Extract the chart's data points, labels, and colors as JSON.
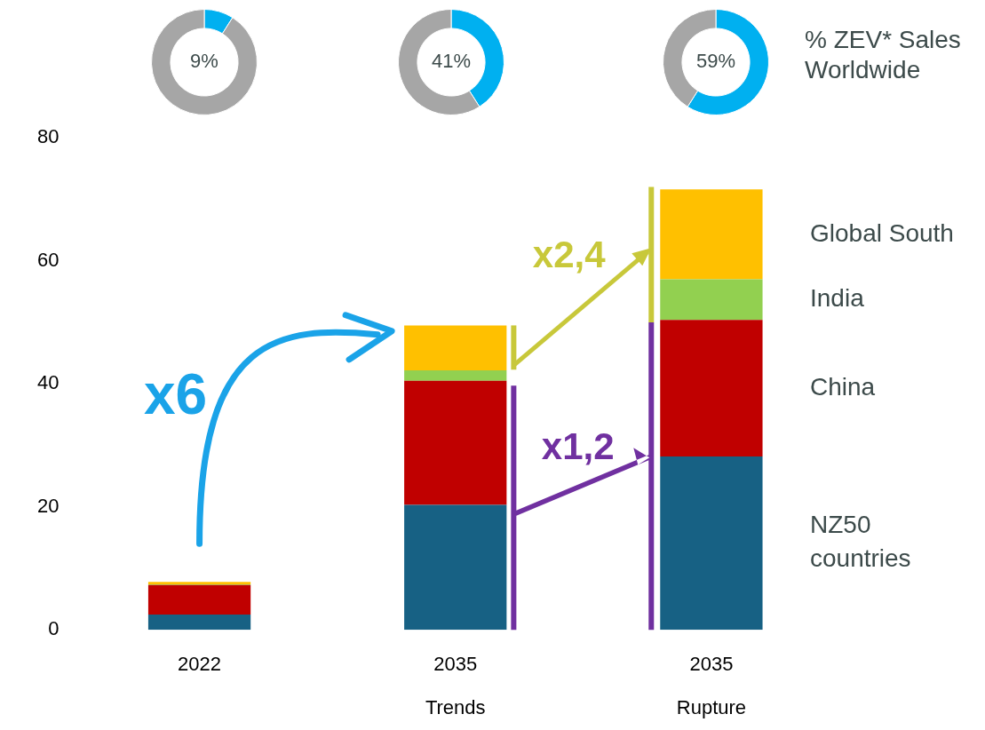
{
  "chart_data": [
    {
      "type": "donut",
      "categories": [
        null,
        null
      ],
      "values": [
        9,
        91
      ],
      "colors": [
        "#00b0f0",
        "#a6a6a6"
      ],
      "value_labels": [
        "9%",
        null
      ]
    },
    {
      "type": "donut",
      "categories": [
        null,
        null
      ],
      "values": [
        41,
        59
      ],
      "colors": [
        "#00b0f0",
        "#a6a6a6"
      ],
      "value_labels": [
        "41%",
        null
      ]
    },
    {
      "type": "donut",
      "categories": [
        null,
        null
      ],
      "values": [
        59,
        41
      ],
      "colors": [
        "#00b0f0",
        "#a6a6a6"
      ],
      "value_labels": [
        "59%",
        null
      ]
    },
    {
      "type": "other",
      "title": "% ZEV* Sales Worldwide"
    },
    {
      "type": "bar",
      "stacked": true,
      "categories": [
        "2022",
        "2035\nTrends",
        "2035\nRupture"
      ],
      "series": [
        {
          "name": "NZ50 countries",
          "color": "#176184",
          "values": [
            2.5,
            20.3,
            28.2
          ]
        },
        {
          "name": "China",
          "color": "#c00000",
          "values": [
            4.8,
            20.2,
            22.2
          ]
        },
        {
          "name": "India",
          "color": "#92d050",
          "values": [
            0.1,
            1.7,
            6.6
          ]
        },
        {
          "name": "Global South",
          "color": "#ffc000",
          "values": [
            0.4,
            7.3,
            14.6
          ]
        }
      ],
      "ylim": [
        0,
        80
      ],
      "yticks": [
        0,
        20,
        40,
        60,
        80
      ],
      "grid": false,
      "legend": "right",
      "annotations": [
        "x6",
        "x2,4",
        "x1,2"
      ]
    }
  ]
}
